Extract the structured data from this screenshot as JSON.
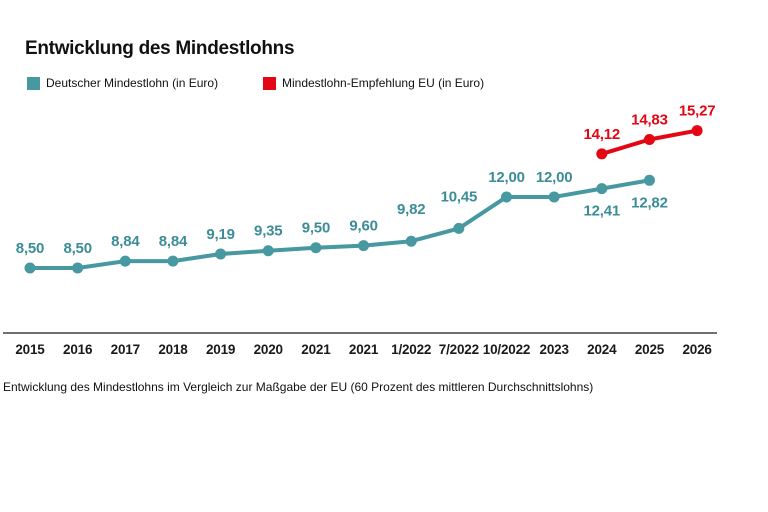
{
  "title": "Entwicklung des Mindestlohns",
  "legend": {
    "items": [
      {
        "label": "Deutscher Mindestlohn (in Euro)",
        "color": "#4798a1"
      },
      {
        "label": "Mindestlohn-Empfehlung EU (in Euro)",
        "color": "#e30613"
      }
    ]
  },
  "caption": "Entwicklung des Mindestlohns im Vergleich zur Maßgabe der EU (60 Prozent des mittleren Durchschnittslohns)",
  "chart_data": {
    "type": "line",
    "title": "Entwicklung des Mindestlohns",
    "categories": [
      "2015",
      "2016",
      "2017",
      "2018",
      "2019",
      "2020",
      "2021",
      "2021",
      "1/2022",
      "7/2022",
      "10/2022",
      "2023",
      "2024",
      "2025",
      "2026"
    ],
    "series": [
      {
        "name": "Deutscher Mindestlohn (in Euro)",
        "color": "#4798a1",
        "label_color": "#3c8d97",
        "start_index": 0,
        "values": [
          8.5,
          8.5,
          8.84,
          8.84,
          9.19,
          9.35,
          9.5,
          9.6,
          9.82,
          10.45,
          12.0,
          12.0,
          12.41,
          12.82
        ],
        "labels": [
          "8,50",
          "8,50",
          "8,84",
          "8,84",
          "9,19",
          "9,35",
          "9,50",
          "9,60",
          "9,82",
          "10,45",
          "12,00",
          "12,00",
          "12,41",
          "12,82"
        ],
        "label_positions": [
          "above",
          "above",
          "above",
          "above",
          "above",
          "above",
          "above",
          "above",
          "above-high",
          "above-high",
          "above",
          "above",
          "below",
          "below"
        ]
      },
      {
        "name": "Mindestlohn-Empfehlung EU (in Euro)",
        "color": "#e30613",
        "label_color": "#e30613",
        "start_index": 12,
        "values": [
          14.12,
          14.83,
          15.27
        ],
        "labels": [
          "14,12",
          "14,83",
          "15,27"
        ],
        "label_positions": [
          "above",
          "above",
          "above"
        ]
      }
    ],
    "xlabel": "",
    "ylabel": "",
    "ylim": [
      5.0,
      16.5
    ],
    "grid": false,
    "legend_position": "top-left",
    "axis_color": "#404040",
    "tick_color": "#1a1a1a"
  }
}
